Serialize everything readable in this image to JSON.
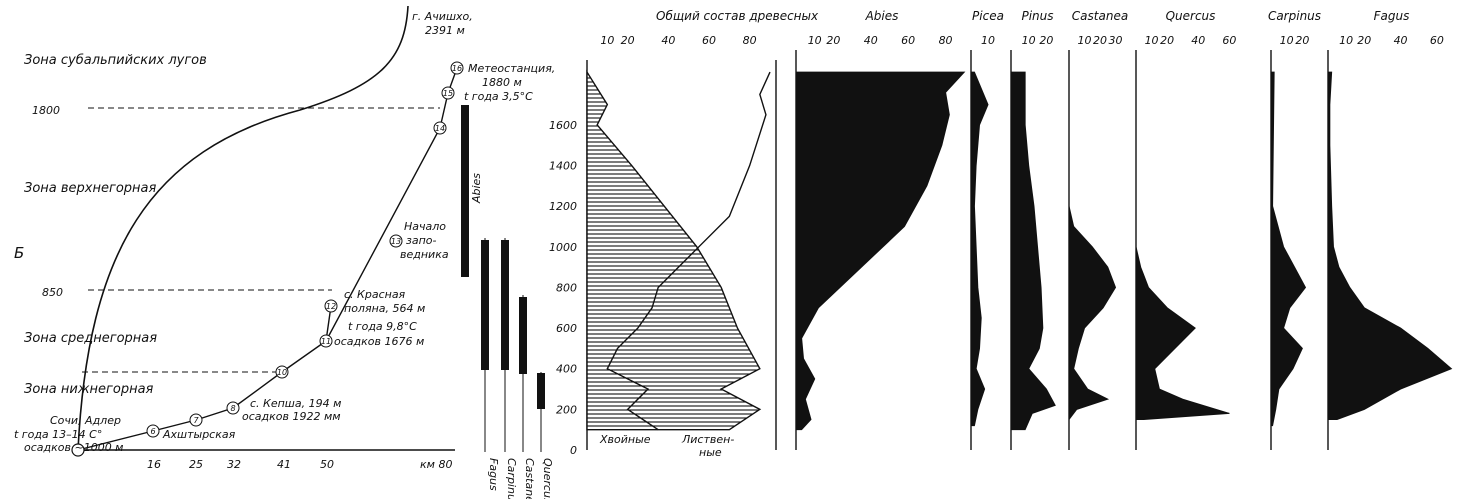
{
  "figure_label": "Б",
  "transect": {
    "zones": [
      {
        "label": "Зона субальпийских лугов"
      },
      {
        "label": "Зона верхнегорная"
      },
      {
        "label": "Зона среднегорная"
      },
      {
        "label": "Зона нижнегорная"
      }
    ],
    "elevation_marks": [
      "1800",
      "850"
    ],
    "peak_label": [
      "г. Ачишхо,",
      "2391 м"
    ],
    "distance_ticks": [
      "16",
      "25",
      "32",
      "41",
      "50",
      "км 80"
    ],
    "station_numbers": [
      "6",
      "7",
      "8",
      "10",
      "11",
      "12",
      "13",
      "14",
      "15",
      "16"
    ],
    "annotations": [
      {
        "id": "meteo",
        "lines": [
          "Метеостанция,",
          "1880 м",
          "t года 3,5°С"
        ]
      },
      {
        "id": "reserve",
        "lines": [
          "Начало",
          "запо-",
          "ведника"
        ]
      },
      {
        "id": "krasnaya",
        "lines": [
          "с. Красная",
          "поляна, 564 м",
          "t года 9,8°С",
          "осадков 1676 м"
        ]
      },
      {
        "id": "kepsha",
        "lines": [
          "с. Кепша, 194 м",
          "осадков 1922 мм"
        ]
      },
      {
        "id": "sochi",
        "lines": [
          "Сочи, Адлер",
          "t года 13–14 С°",
          "осадков ~1000 м"
        ]
      },
      {
        "id": "akhshtyr",
        "lines": [
          "Ахштырская"
        ]
      }
    ],
    "ranges": [
      {
        "taxon": "Abies"
      },
      {
        "taxon": "Fagus"
      },
      {
        "taxon": "Carpinus"
      },
      {
        "taxon": "Castanea"
      },
      {
        "taxon": "Quercus"
      }
    ]
  },
  "chart_data": {
    "type": "area",
    "y_axis": {
      "label": "",
      "ticks": [
        "200",
        "400",
        "600",
        "800",
        "1000",
        "1200",
        "1400",
        "1600"
      ],
      "zero_label": "0",
      "ylim": [
        0,
        1880
      ]
    },
    "composition": {
      "title": "Общий состав древесных",
      "ticks": [
        "10",
        "20",
        "40",
        "60",
        "80"
      ],
      "xlim": [
        0,
        90
      ],
      "legend": [
        "Хвойные",
        "Листвен-",
        "ные"
      ],
      "conifer": {
        "y": [
          1860,
          1700,
          1600,
          1400,
          1200,
          1000,
          800,
          600,
          400,
          300,
          200,
          100
        ],
        "x": [
          0,
          10,
          5,
          22,
          38,
          54,
          66,
          74,
          85,
          66,
          85,
          70
        ]
      },
      "deciduous_line": {
        "y": [
          1860,
          1750,
          1650,
          1400,
          1150,
          1000,
          900,
          800,
          700,
          600,
          500,
          400,
          300,
          200,
          100
        ],
        "x": [
          90,
          85,
          88,
          80,
          70,
          55,
          45,
          35,
          32,
          25,
          15,
          10,
          30,
          20,
          35
        ]
      }
    },
    "panels": [
      {
        "name": "Abies",
        "ticks": [
          "10",
          "20",
          "40",
          "60",
          "80"
        ],
        "xlim": [
          0,
          92
        ],
        "y": [
          1860,
          1760,
          1650,
          1500,
          1300,
          1100,
          900,
          700,
          550,
          450,
          350,
          250,
          150,
          100
        ],
        "x": [
          90,
          80,
          82,
          78,
          70,
          58,
          35,
          12,
          3,
          4,
          10,
          5,
          8,
          3
        ]
      },
      {
        "name": "Picea",
        "ticks": [
          "10"
        ],
        "xlim": [
          0,
          20
        ],
        "y": [
          1860,
          1700,
          1600,
          1400,
          1200,
          1000,
          800,
          650,
          500,
          400,
          300,
          200,
          120
        ],
        "x": [
          2,
          10,
          5,
          3,
          2,
          3,
          4,
          6,
          5,
          3,
          8,
          4,
          2
        ]
      },
      {
        "name": "Pinus",
        "ticks": [
          "10",
          "20"
        ],
        "xlim": [
          0,
          30
        ],
        "y": [
          1860,
          1600,
          1400,
          1200,
          1000,
          800,
          600,
          500,
          400,
          300,
          220,
          180,
          100
        ],
        "x": [
          8,
          8,
          10,
          13,
          15,
          17,
          18,
          16,
          10,
          20,
          25,
          12,
          8
        ]
      },
      {
        "name": "Castanea",
        "ticks": [
          "10",
          "20",
          "30"
        ],
        "xlim": [
          0,
          40
        ],
        "y": [
          1860,
          1200,
          1100,
          1000,
          900,
          800,
          700,
          600,
          500,
          400,
          300,
          250,
          200,
          150
        ],
        "x": [
          0,
          0,
          3,
          15,
          25,
          30,
          22,
          10,
          6,
          3,
          12,
          25,
          5,
          0
        ]
      },
      {
        "name": "Quercus",
        "ticks": [
          "10",
          "20",
          "40",
          "60"
        ],
        "xlim": [
          0,
          70
        ],
        "y": [
          1860,
          1000,
          900,
          800,
          700,
          600,
          500,
          400,
          300,
          250,
          180,
          150
        ],
        "x": [
          0,
          0,
          3,
          8,
          20,
          38,
          25,
          12,
          15,
          30,
          60,
          5
        ]
      },
      {
        "name": "Carpinus",
        "ticks": [
          "10",
          "20"
        ],
        "xlim": [
          0,
          30
        ],
        "y": [
          1860,
          1200,
          1000,
          900,
          800,
          700,
          600,
          500,
          400,
          300,
          200,
          120
        ],
        "x": [
          2,
          1,
          8,
          15,
          22,
          12,
          8,
          20,
          14,
          5,
          3,
          1
        ]
      },
      {
        "name": "Fagus",
        "ticks": [
          "10",
          "20",
          "40",
          "60"
        ],
        "xlim": [
          0,
          70
        ],
        "y": [
          1860,
          1700,
          1500,
          1200,
          1000,
          900,
          800,
          700,
          600,
          500,
          400,
          300,
          200,
          150
        ],
        "x": [
          2,
          1,
          1,
          2,
          3,
          6,
          12,
          20,
          40,
          55,
          68,
          40,
          20,
          5
        ]
      }
    ]
  }
}
